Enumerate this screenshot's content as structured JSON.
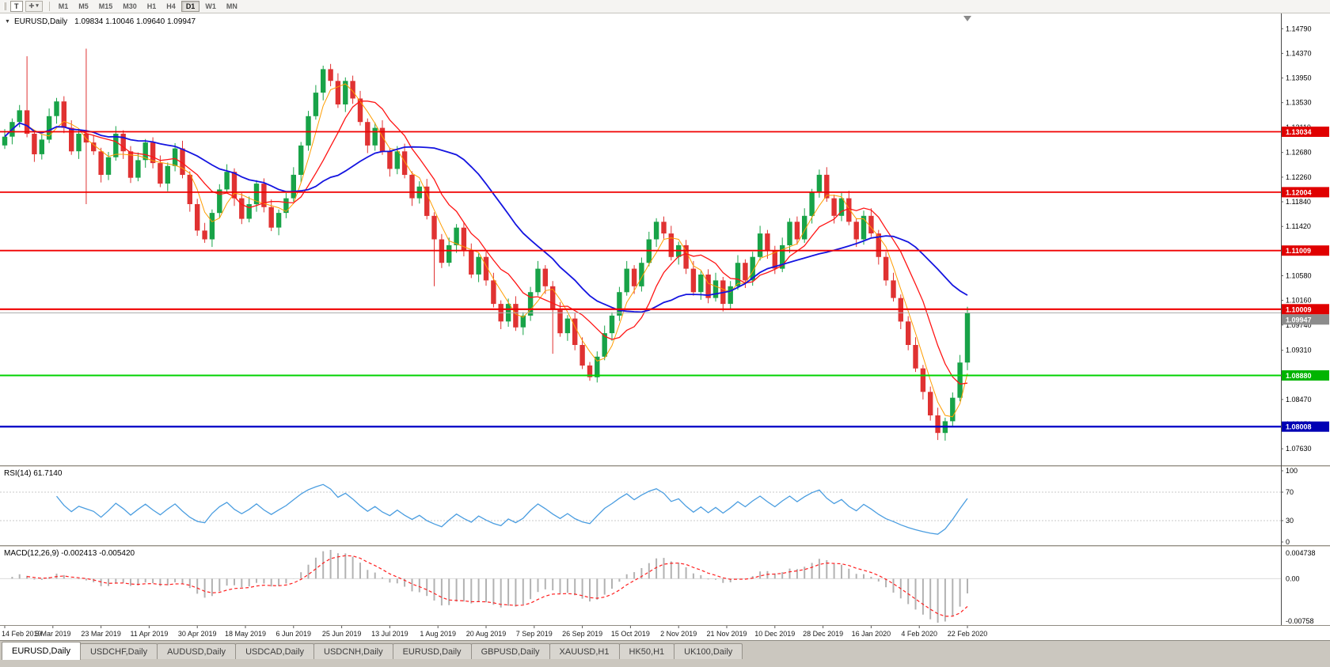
{
  "toolbar": {
    "text_tool_label": "T",
    "shapes_icon": "✛",
    "caret_icon": "▾",
    "timeframes": [
      "M1",
      "M5",
      "M15",
      "M30",
      "H1",
      "H4",
      "D1",
      "W1",
      "MN"
    ],
    "active_timeframe": "D1"
  },
  "chart_header": {
    "collapse_icon": "▼",
    "symbol": "EURUSD,Daily",
    "ohlc": "1.09834 1.10046 1.09640 1.09947"
  },
  "price_axis": {
    "labels": [
      "1.14790",
      "1.14370",
      "1.13950",
      "1.13530",
      "1.13110",
      "1.12680",
      "1.12260",
      "1.11840",
      "1.11420",
      "1.11000",
      "1.10580",
      "1.10160",
      "1.09740",
      "1.09310",
      "1.08880",
      "1.08470",
      "1.08050",
      "1.07630"
    ]
  },
  "levels": {
    "lines": [
      {
        "price": 1.13034,
        "label": "1.13034",
        "color": "#f00000",
        "width": 1.8,
        "badge": "#e00000"
      },
      {
        "price": 1.12004,
        "label": "1.12004",
        "color": "#f00000",
        "width": 1.8,
        "badge": "#e00000"
      },
      {
        "price": 1.11009,
        "label": "1.11009",
        "color": "#f00000",
        "width": 1.8,
        "badge": "#e00000"
      },
      {
        "price": 1.10009,
        "label": "1.10009",
        "color": "#f00000",
        "width": 2.2,
        "badge": "#e00000"
      },
      {
        "price": 1.0888,
        "label": "1.08880",
        "color": "#00d200",
        "width": 2.0,
        "badge": "#00b400"
      },
      {
        "price": 1.08008,
        "label": "1.08008",
        "color": "#0000c8",
        "width": 2.4,
        "badge": "#0000b4"
      }
    ],
    "current_price": {
      "price": 1.09947,
      "label": "1.09947",
      "line_color": "#aaaaaa",
      "badge": "#8c8c8c"
    }
  },
  "rsi": {
    "label": "RSI(14) 61.7140",
    "value": 61.714,
    "axis": [
      "100",
      "70",
      "30",
      "0"
    ],
    "levels": [
      70,
      30
    ]
  },
  "macd": {
    "label": "MACD(12,26,9) -0.002413 -0.005420",
    "value": -0.002413,
    "signal_value": -0.00542,
    "axis_top": "0.004738",
    "axis_zero": "0.00",
    "axis_bottom": "-0.00758"
  },
  "date_axis": [
    "14 Feb 2019",
    "5 Mar 2019",
    "23 Mar 2019",
    "11 Apr 2019",
    "30 Apr 2019",
    "18 May 2019",
    "6 Jun 2019",
    "25 Jun 2019",
    "13 Jul 2019",
    "1 Aug 2019",
    "20 Aug 2019",
    "7 Sep 2019",
    "26 Sep 2019",
    "15 Oct 2019",
    "2 Nov 2019",
    "21 Nov 2019",
    "10 Dec 2019",
    "28 Dec 2019",
    "16 Jan 2020",
    "4 Feb 2020",
    "22 Feb 2020"
  ],
  "tabs": {
    "items": [
      "EURUSD,Daily",
      "USDCHF,Daily",
      "AUDUSD,Daily",
      "USDCAD,Daily",
      "USDCNH,Daily",
      "EURUSD,Daily",
      "GBPUSD,Daily",
      "XAUUSD,H1",
      "HK50,H1",
      "UK100,Daily"
    ],
    "active_index": 0
  },
  "chart_data": {
    "type": "candlestick",
    "symbol": "EURUSD",
    "timeframe": "Daily",
    "title": "EURUSD,Daily",
    "ylim": [
      1.0735,
      1.1505
    ],
    "x_labels": [
      "14 Feb 2019",
      "5 Mar 2019",
      "23 Mar 2019",
      "11 Apr 2019",
      "30 Apr 2019",
      "18 May 2019",
      "6 Jun 2019",
      "25 Jun 2019",
      "13 Jul 2019",
      "1 Aug 2019",
      "20 Aug 2019",
      "7 Sep 2019",
      "26 Sep 2019",
      "15 Oct 2019",
      "2 Nov 2019",
      "21 Nov 2019",
      "10 Dec 2019",
      "28 Dec 2019",
      "16 Jan 2020",
      "4 Feb 2020",
      "22 Feb 2020"
    ],
    "first_open": 1.128,
    "closes": [
      1.1295,
      1.132,
      1.134,
      1.13,
      1.1265,
      1.129,
      1.133,
      1.1355,
      1.131,
      1.127,
      1.13,
      1.1285,
      1.127,
      1.123,
      1.126,
      1.13,
      1.127,
      1.1225,
      1.1255,
      1.1285,
      1.125,
      1.1215,
      1.1245,
      1.1275,
      1.123,
      1.118,
      1.1135,
      1.112,
      1.1165,
      1.1205,
      1.1235,
      1.119,
      1.1155,
      1.118,
      1.1215,
      1.1175,
      1.114,
      1.1165,
      1.119,
      1.123,
      1.128,
      1.133,
      1.137,
      1.141,
      1.139,
      1.135,
      1.139,
      1.136,
      1.132,
      1.128,
      1.131,
      1.127,
      1.124,
      1.127,
      1.123,
      1.119,
      1.121,
      1.116,
      1.112,
      1.108,
      1.111,
      1.114,
      1.11,
      1.106,
      1.109,
      1.105,
      1.101,
      1.098,
      1.101,
      1.097,
      1.099,
      1.103,
      1.107,
      1.104,
      1.1,
      1.096,
      1.0985,
      1.094,
      1.0905,
      1.0885,
      1.092,
      1.096,
      1.099,
      1.103,
      1.107,
      1.104,
      1.108,
      1.112,
      1.115,
      1.113,
      1.109,
      1.111,
      1.107,
      1.103,
      1.106,
      1.102,
      1.105,
      1.101,
      1.104,
      1.108,
      1.105,
      1.109,
      1.113,
      1.11,
      1.107,
      1.111,
      1.115,
      1.112,
      1.116,
      1.12,
      1.123,
      1.119,
      1.116,
      1.119,
      1.115,
      1.112,
      1.116,
      1.113,
      1.109,
      1.105,
      1.102,
      1.098,
      1.094,
      1.09,
      1.086,
      1.082,
      1.079,
      1.081,
      1.085,
      1.091,
      1.0995
    ],
    "wick_overrides": {
      "3": {
        "high": 1.1432
      },
      "11": {
        "high": 1.1445,
        "low": 1.118
      },
      "58": {
        "low": 1.104
      },
      "74": {
        "low": 1.0925
      },
      "79": {
        "low": 1.0879
      },
      "126": {
        "low": 1.0778
      },
      "130": {
        "high": 1.1005
      }
    },
    "horizontal_lines": [
      1.13034,
      1.12004,
      1.11009,
      1.10009,
      1.0888,
      1.08008
    ],
    "current_close": 1.09947,
    "indicators": [
      "RSI(14)",
      "MACD(12,26,9)"
    ],
    "rsi_last": 61.714,
    "macd_last": -0.002413,
    "macd_signal_last": -0.00542,
    "colors": {
      "up": "#18a348",
      "down": "#e03232",
      "ma_fast": "#ff9d00",
      "ma_mid": "#ff1414",
      "ma_slow": "#1414e0",
      "rsi": "#4a9de0",
      "macd_hist": "#b2b2b2",
      "macd_signal": "#ff2020",
      "grid": "#c9c9c9"
    }
  }
}
